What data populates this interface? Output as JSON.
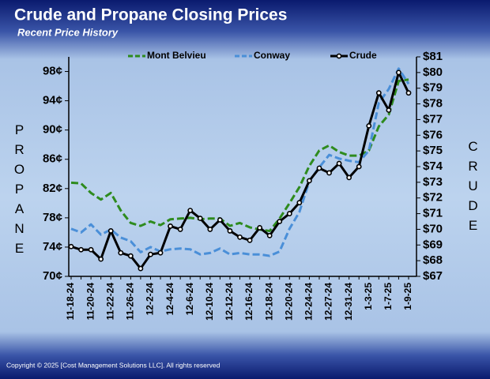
{
  "chart_data": {
    "type": "line",
    "title": "Crude and Propane Closing Prices",
    "subtitle": "Recent Price History",
    "ylabel": "PROPANE",
    "y2label": "CRUDE",
    "copyright": "Copyright © 2025 [Cost Management Solutions LLC].  All rights reserved",
    "categories": [
      "11-18-24",
      null,
      "11-20-24",
      null,
      "11-22-24",
      null,
      "11-26-24",
      null,
      "12-2-24",
      null,
      "12-4-24",
      null,
      "12-6-24",
      null,
      "12-10-24",
      null,
      "12-12-24",
      null,
      "12-16-24",
      null,
      "12-18-24",
      null,
      "12-20-24",
      null,
      "12-24-24",
      null,
      "12-27-24",
      null,
      "12-31-24",
      null,
      "1-3-25",
      null,
      "1-7-25",
      null,
      "1-9-25"
    ],
    "series": [
      {
        "name": "Mont Belvieu",
        "color": "#2e8b1e",
        "dash": true,
        "markers": false,
        "values": [
          82.8,
          82.7,
          81.4,
          80.5,
          81.4,
          79.0,
          77.3,
          76.9,
          77.5,
          77.0,
          77.8,
          77.9,
          78.0,
          77.8,
          77.9,
          77.9,
          76.9,
          77.3,
          76.7,
          76.4,
          76.2,
          77.9,
          80.0,
          82.2,
          85.1,
          87.2,
          87.9,
          87.0,
          86.5,
          86.5,
          87.2,
          90.5,
          92.1,
          96.7,
          96.9
        ]
      },
      {
        "name": "Conway",
        "color": "#4a8fd8",
        "dash": true,
        "markers": false,
        "values": [
          76.5,
          76.0,
          77.1,
          75.7,
          76.4,
          75.3,
          74.8,
          73.3,
          74.0,
          73.4,
          73.7,
          73.8,
          73.7,
          73.0,
          73.2,
          73.8,
          73.0,
          73.2,
          73.0,
          73.0,
          72.8,
          73.4,
          76.5,
          78.8,
          83.0,
          84.9,
          86.6,
          86.1,
          85.8,
          85.6,
          87.2,
          93.7,
          95.6,
          98.4,
          96.3
        ]
      },
      {
        "name": "Crude",
        "color": "#000000",
        "dash": false,
        "markers": true,
        "axis": "y2",
        "values": [
          68.9,
          68.7,
          68.7,
          68.1,
          69.9,
          68.5,
          68.3,
          67.5,
          68.4,
          68.5,
          70.2,
          70.0,
          71.2,
          70.7,
          70.0,
          70.6,
          69.9,
          69.5,
          69.3,
          70.1,
          69.6,
          70.5,
          71.0,
          71.7,
          73.1,
          73.9,
          73.6,
          74.2,
          73.3,
          74.0,
          76.6,
          78.7,
          77.6,
          80.0,
          78.7
        ]
      }
    ],
    "ylim": [
      70,
      100
    ],
    "yticks": [
      {
        "value": 70,
        "label": "70¢"
      },
      {
        "value": 74,
        "label": "74¢"
      },
      {
        "value": 78,
        "label": "78¢"
      },
      {
        "value": 82,
        "label": "82¢"
      },
      {
        "value": 86,
        "label": "86¢"
      },
      {
        "value": 90,
        "label": "90¢"
      },
      {
        "value": 94,
        "label": "94¢"
      },
      {
        "value": 98,
        "label": "98¢"
      }
    ],
    "y2lim": [
      67,
      81
    ],
    "y2ticks": [
      {
        "value": 67,
        "label": "$67"
      },
      {
        "value": 68,
        "label": "$68"
      },
      {
        "value": 69,
        "label": "$69"
      },
      {
        "value": 70,
        "label": "$70"
      },
      {
        "value": 71,
        "label": "$71"
      },
      {
        "value": 72,
        "label": "$72"
      },
      {
        "value": 73,
        "label": "$73"
      },
      {
        "value": 74,
        "label": "$74"
      },
      {
        "value": 75,
        "label": "$75"
      },
      {
        "value": 76,
        "label": "$76"
      },
      {
        "value": 77,
        "label": "$77"
      },
      {
        "value": 78,
        "label": "$78"
      },
      {
        "value": 79,
        "label": "$79"
      },
      {
        "value": 80,
        "label": "$80"
      },
      {
        "value": 81,
        "label": "$81"
      }
    ],
    "grid": false,
    "legend": "top"
  }
}
